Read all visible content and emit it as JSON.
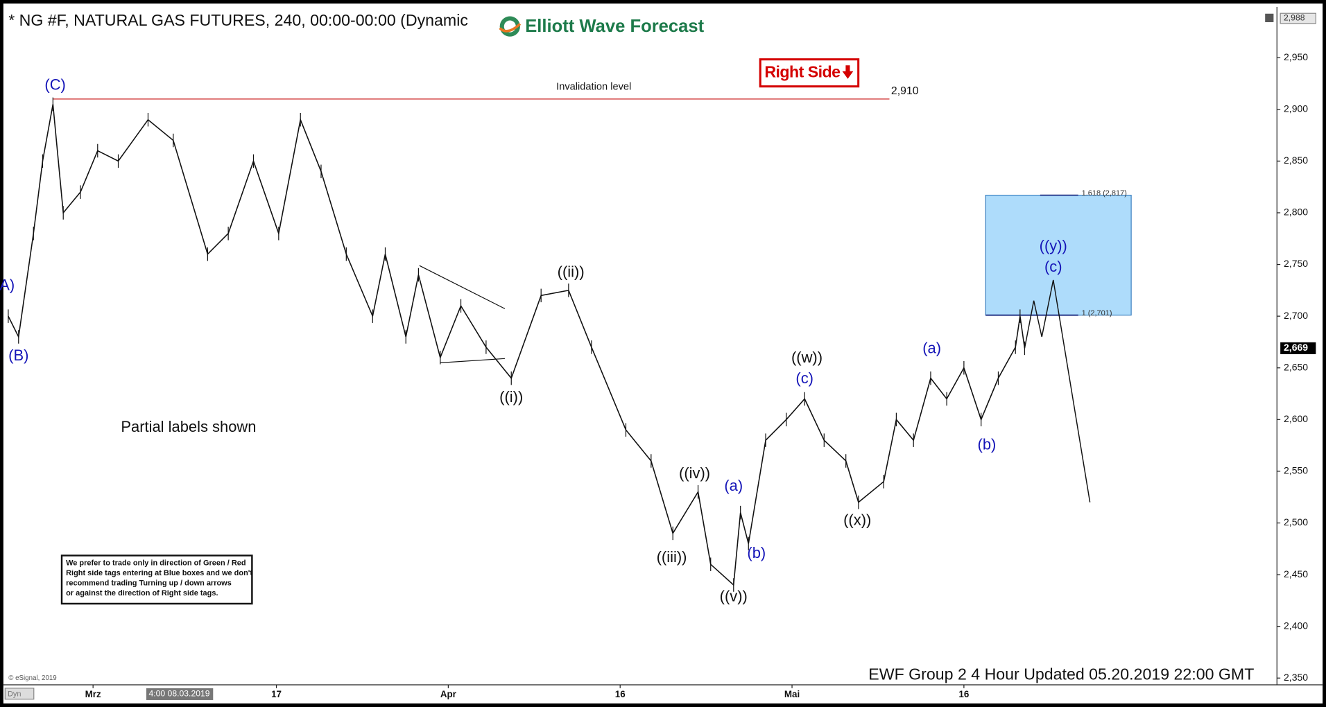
{
  "chart_data": {
    "type": "line",
    "title": "* NG #F, NATURAL GAS FUTURES, 240, 00:00-00:00 (Dynamic",
    "logo": "Elliott Wave Forecast",
    "tag": "Right Side",
    "note": "Partial labels shown",
    "disclaimer": [
      "We prefer to trade only in direction of Green / Red",
      "Right side tags entering at Blue boxes and we don't",
      "recommend trading Turning up / down arrows",
      "or against the direction of Right side tags."
    ],
    "footer": "EWF Group 2 4 Hour Updated 05.20.2019 22:00 GMT",
    "copyright": "© eSignal, 2019",
    "mode": "Dyn",
    "crosshair_label": "4:00 08.03.2019",
    "color": "#111111",
    "x": [
      52.6,
      53.5,
      54.8,
      55.6,
      56.5,
      57.4,
      58.9,
      60.4,
      62.2,
      64.8,
      67,
      70,
      71.8,
      74,
      76.2,
      78.1,
      79.9,
      82.1,
      84.4,
      85.5,
      87.3,
      88.4,
      90.3,
      92.1,
      94.3,
      96.5,
      99.1,
      101.5,
      103.5,
      106.5,
      108.7,
      110.6,
      112.8,
      113.9,
      115.9,
      116.5,
      117.2,
      118.7,
      120.5,
      122.1,
      123.8,
      125.7,
      126.8,
      129,
      130.1,
      131.6,
      133.1,
      134.5,
      136,
      137.5,
      139,
      140.5,
      140.9,
      141.3
    ],
    "values": [
      2700,
      2680,
      2780,
      2850,
      2905,
      2800,
      2820,
      2860,
      2850,
      2890,
      2870,
      2760,
      2780,
      2850,
      2780,
      2890,
      2840,
      2760,
      2700,
      2760,
      2680,
      2740,
      2660,
      2710,
      2670,
      2640,
      2720,
      2725,
      2670,
      2590,
      2560,
      2490,
      2530,
      2460,
      2440,
      2510,
      2480,
      2580,
      2600,
      2620,
      2580,
      2560,
      2520,
      2540,
      2600,
      2580,
      2640,
      2620,
      2650,
      2600,
      2640,
      2670,
      2700,
      2669
    ],
    "projection": {
      "x": [
        141.3,
        142.1,
        142.8,
        143.8,
        147
      ],
      "values": [
        2669,
        2715,
        2680,
        2735,
        2520
      ]
    },
    "invalidation": {
      "label": "Invalidation level",
      "value": 2910,
      "value_label": "2,910",
      "x": [
        56.5,
        129.5
      ]
    },
    "target_box": {
      "xlim": [
        137.9,
        150.6
      ],
      "ylim": [
        2701,
        2817
      ],
      "color": "#aedcfb",
      "levels": [
        {
          "value": 2817,
          "label": "1.618 (2,817)"
        },
        {
          "value": 2701,
          "label": "1 (2,701)"
        }
      ]
    },
    "annotations": [
      {
        "text": "A)",
        "x": 52.5,
        "y": 2729,
        "color": "#1515b8"
      },
      {
        "text": "(B)",
        "x": 53.5,
        "y": 2661,
        "color": "#1515b8"
      },
      {
        "text": "(C)",
        "x": 56.7,
        "y": 2923,
        "color": "#1515b8"
      },
      {
        "text": "((i))",
        "x": 96.5,
        "y": 2621,
        "color": "#111111"
      },
      {
        "text": "((ii))",
        "x": 101.7,
        "y": 2742,
        "color": "#111111"
      },
      {
        "text": "((iii))",
        "x": 110.5,
        "y": 2466,
        "color": "#111111"
      },
      {
        "text": "((iv))",
        "x": 112.5,
        "y": 2547,
        "color": "#111111"
      },
      {
        "text": "((v))",
        "x": 115.9,
        "y": 2428,
        "color": "#111111"
      },
      {
        "text": "(a)",
        "x": 115.9,
        "y": 2535,
        "color": "#1515b8"
      },
      {
        "text": "(b)",
        "x": 117.9,
        "y": 2470,
        "color": "#1515b8"
      },
      {
        "text": "((w))",
        "x": 122.3,
        "y": 2659,
        "color": "#111111"
      },
      {
        "text": "(c)",
        "x": 122.1,
        "y": 2639,
        "color": "#1515b8"
      },
      {
        "text": "((x))",
        "x": 126.7,
        "y": 2502,
        "color": "#111111"
      },
      {
        "text": "(a)",
        "x": 133.2,
        "y": 2668,
        "color": "#1515b8"
      },
      {
        "text": "(b)",
        "x": 138,
        "y": 2575,
        "color": "#1515b8"
      },
      {
        "text": "((y))",
        "x": 143.8,
        "y": 2767,
        "color": "#1515b8"
      },
      {
        "text": "(c)",
        "x": 143.8,
        "y": 2747,
        "color": "#1515b8"
      }
    ],
    "current_price": {
      "value": 2669,
      "label": "2,669"
    },
    "top_price": {
      "value": 2988,
      "label": "2,988"
    },
    "xlim": [
      52.47,
      163.32
    ],
    "xticks": [
      {
        "value": 60,
        "label": "Mrz"
      },
      {
        "value": 76,
        "label": "17"
      },
      {
        "value": 91,
        "label": "Apr"
      },
      {
        "value": 106,
        "label": "16"
      },
      {
        "value": 121,
        "label": "Mai"
      },
      {
        "value": 136,
        "label": "16"
      }
    ],
    "ylim": [
      2343.46,
      2995.78
    ],
    "yticks": [
      {
        "value": 2350,
        "label": "2,350"
      },
      {
        "value": 2400,
        "label": "2,400"
      },
      {
        "value": 2450,
        "label": "2,450"
      },
      {
        "value": 2500,
        "label": "2,500"
      },
      {
        "value": 2550,
        "label": "2,550"
      },
      {
        "value": 2600,
        "label": "2,600"
      },
      {
        "value": 2650,
        "label": "2,650"
      },
      {
        "value": 2700,
        "label": "2,700"
      },
      {
        "value": 2750,
        "label": "2,750"
      },
      {
        "value": 2800,
        "label": "2,800"
      },
      {
        "value": 2850,
        "label": "2,850"
      },
      {
        "value": 2900,
        "label": "2,900"
      },
      {
        "value": 2950,
        "label": "2,950"
      }
    ]
  }
}
